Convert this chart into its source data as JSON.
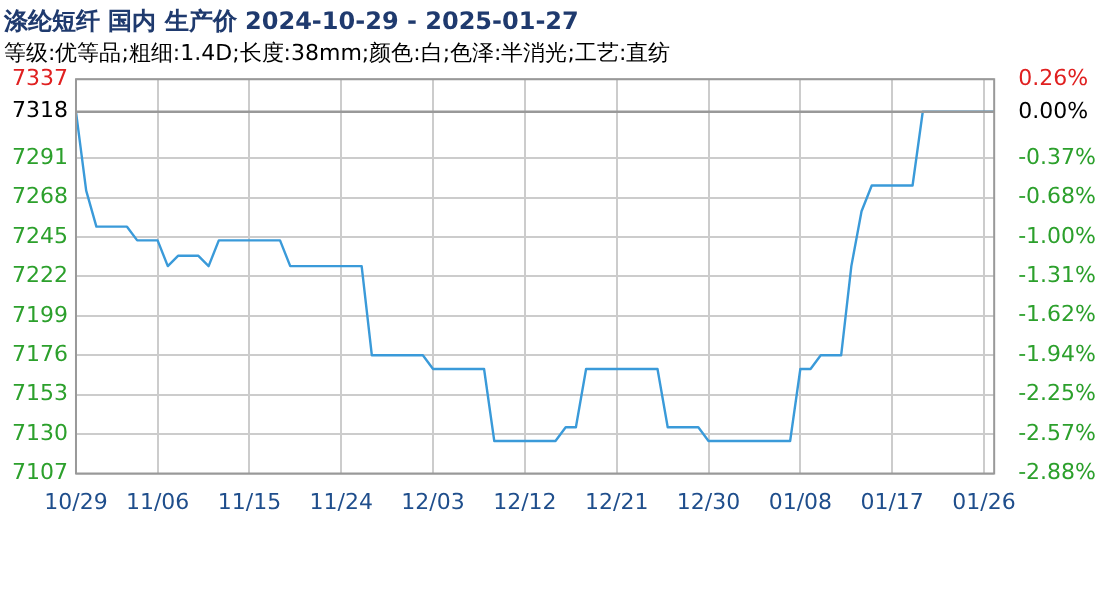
{
  "chart_data": {
    "type": "line",
    "title": "涤纶短纤 国内 生产价 2024-10-29 - 2025-01-27",
    "subtitle": "等级:优等品;粗细:1.4D;长度:38mm;颜色:白;色泽:半消光;工艺:直纺",
    "x": [
      "2024-10-29",
      "2024-10-30",
      "2024-10-31",
      "2024-11-03",
      "2024-11-04",
      "2024-11-06",
      "2024-11-07",
      "2024-11-08",
      "2024-11-10",
      "2024-11-11",
      "2024-11-12",
      "2024-11-18",
      "2024-11-19",
      "2024-11-26",
      "2024-11-27",
      "2024-12-02",
      "2024-12-03",
      "2024-12-08",
      "2024-12-09",
      "2024-12-15",
      "2024-12-16",
      "2024-12-17",
      "2024-12-18",
      "2024-12-25",
      "2024-12-26",
      "2024-12-29",
      "2024-12-30",
      "2025-01-07",
      "2025-01-08",
      "2025-01-09",
      "2025-01-10",
      "2025-01-12",
      "2025-01-13",
      "2025-01-14",
      "2025-01-15",
      "2025-01-19",
      "2025-01-20",
      "2025-01-27"
    ],
    "series": [
      {
        "color": "#3a9ad9",
        "values": [
          7318,
          7272,
          7251,
          7251,
          7243,
          7243,
          7228,
          7234,
          7234,
          7228,
          7243,
          7243,
          7228,
          7228,
          7176,
          7176,
          7168,
          7168,
          7126,
          7126,
          7134,
          7134,
          7168,
          7168,
          7134,
          7134,
          7126,
          7126,
          7168,
          7168,
          7176,
          7176,
          7228,
          7260,
          7275,
          7275,
          7318,
          7318
        ]
      }
    ],
    "xlim": [
      "2024-10-29",
      "2025-01-27"
    ],
    "xticks": [
      {
        "value": "2024-10-29",
        "label": "10/29"
      },
      {
        "value": "2024-11-06",
        "label": "11/06"
      },
      {
        "value": "2024-11-15",
        "label": "11/15"
      },
      {
        "value": "2024-11-24",
        "label": "11/24"
      },
      {
        "value": "2024-12-03",
        "label": "12/03"
      },
      {
        "value": "2024-12-12",
        "label": "12/12"
      },
      {
        "value": "2024-12-21",
        "label": "12/21"
      },
      {
        "value": "2024-12-30",
        "label": "12/30"
      },
      {
        "value": "2025-01-08",
        "label": "01/08"
      },
      {
        "value": "2025-01-17",
        "label": "01/17"
      },
      {
        "value": "2025-01-26",
        "label": "01/26"
      }
    ],
    "ylim": [
      7107,
      7337
    ],
    "yticks": [
      7107,
      7130,
      7153,
      7176,
      7199,
      7222,
      7245,
      7268,
      7291,
      7318,
      7337
    ],
    "y2lim": [
      -2.88,
      0.26
    ],
    "y2ticks": [
      {
        "value": -2.88,
        "label": "-2.88%"
      },
      {
        "value": -2.57,
        "label": "-2.57%"
      },
      {
        "value": -2.25,
        "label": "-2.25%"
      },
      {
        "value": -1.94,
        "label": "-1.94%"
      },
      {
        "value": -1.62,
        "label": "-1.62%"
      },
      {
        "value": -1.31,
        "label": "-1.31%"
      },
      {
        "value": -1,
        "label": "-1.00%"
      },
      {
        "value": -0.68,
        "label": "-0.68%"
      },
      {
        "value": -0.37,
        "label": "-0.37%"
      },
      {
        "value": 0,
        "label": "0.00%"
      },
      {
        "value": 0.26,
        "label": "0.26%"
      }
    ],
    "ref_lines": [
      {
        "axis": "y",
        "value": 7318,
        "color": "#999999"
      }
    ],
    "grid": true,
    "marker": "none",
    "line_style": "solid"
  }
}
